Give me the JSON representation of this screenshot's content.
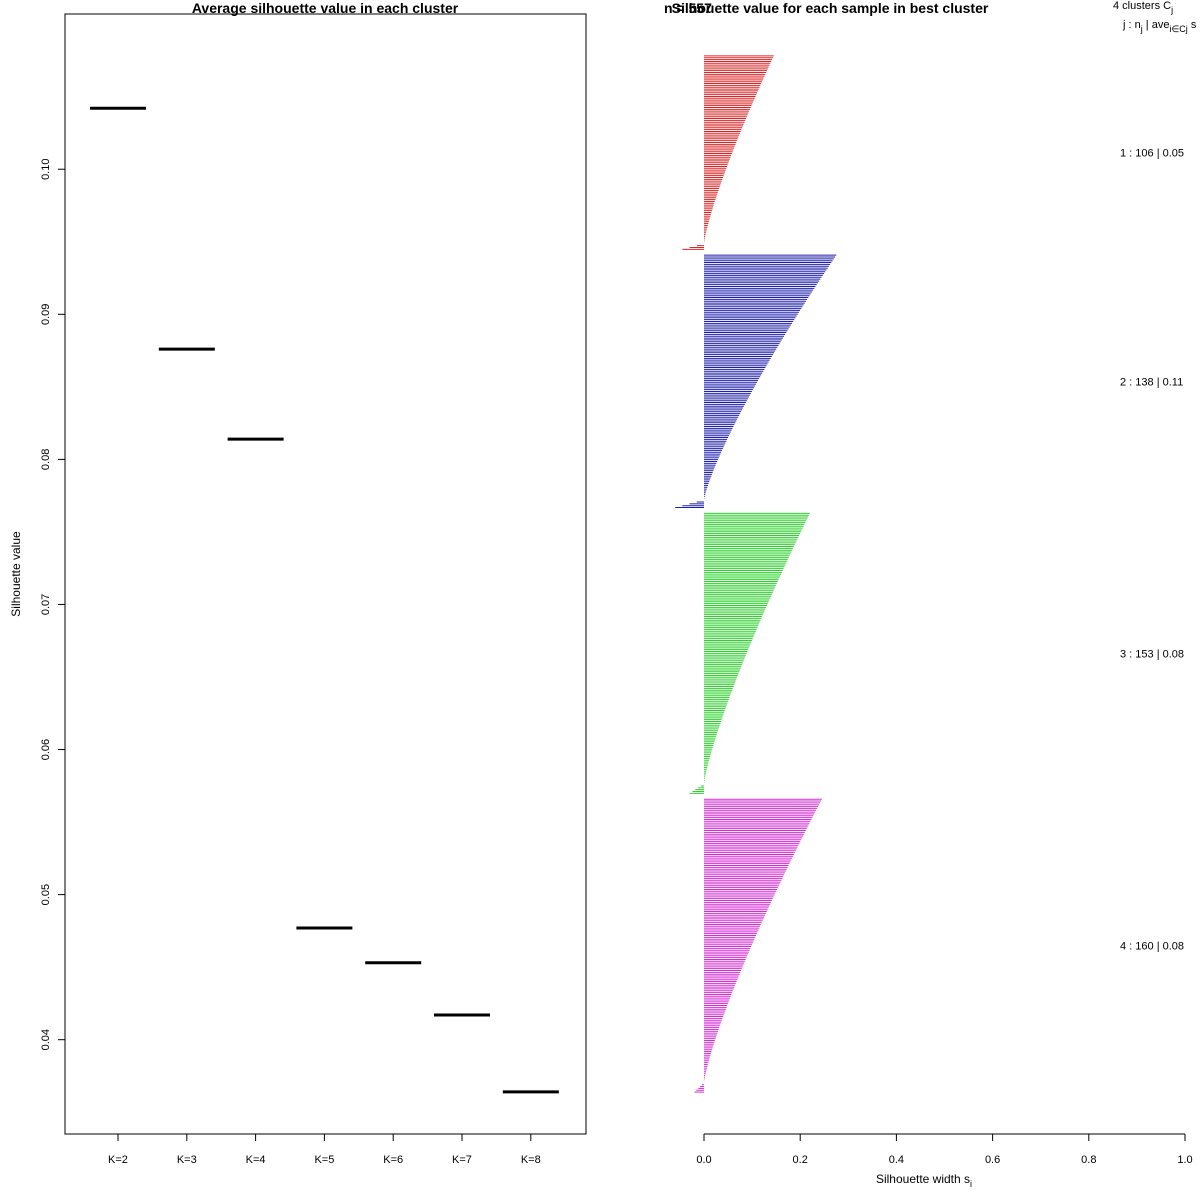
{
  "chart_data": [
    {
      "type": "line",
      "title": "Average silhouette value in each cluster",
      "xlabel": "",
      "ylabel": "Silhouette value",
      "categories": [
        "K=2",
        "K=3",
        "K=4",
        "K=5",
        "K=6",
        "K=7",
        "K=8"
      ],
      "values": [
        0.1042,
        0.0876,
        0.0814,
        0.0477,
        0.0453,
        0.0417,
        0.0364
      ],
      "ylim": [
        0.0335,
        0.1107
      ],
      "yticks": [
        0.04,
        0.05,
        0.06,
        0.07,
        0.08,
        0.09,
        0.1
      ],
      "ytick_labels": [
        "0.04",
        "0.05",
        "0.06",
        "0.07",
        "0.08",
        "0.09",
        "0.10"
      ],
      "grid": false
    },
    {
      "type": "bar",
      "orientation": "horizontal",
      "title": "Silhouette value for each sample in best cluster",
      "overlapped_title_fragment": "n = 557",
      "xlabel": "Silhouette width s",
      "xlabel_subscript": "i",
      "xlim": [
        0,
        1
      ],
      "xticks": [
        0,
        0.2,
        0.4,
        0.6,
        0.8,
        1
      ],
      "xtick_labels": [
        "0.0",
        "0.2",
        "0.4",
        "0.6",
        "0.8",
        "1.0"
      ],
      "legend_header": {
        "line1_prefix": "4  clusters  C",
        "line1_sub": "j",
        "line2_prefix": "j :  n",
        "line2_sub1": "j",
        "line2_mid": " | ave",
        "line2_sub2": "i∈Cj",
        "line2_suffix": "  s"
      },
      "clusters": [
        {
          "id": 1,
          "n": 106,
          "avg": "0.05",
          "label": "1 :  106  |  0.05",
          "color": "#d62728",
          "max": 0.145,
          "min": -0.045
        },
        {
          "id": 2,
          "n": 138,
          "avg": "0.11",
          "label": "2 :  138  |  0.11",
          "color": "#1f1fa8",
          "max": 0.275,
          "min": -0.06
        },
        {
          "id": 3,
          "n": 153,
          "avg": "0.08",
          "label": "3 :  153  |  0.08",
          "color": "#2fcf2f",
          "max": 0.22,
          "min": -0.03
        },
        {
          "id": 4,
          "n": 160,
          "avg": "0.08",
          "label": "4 :  160  |  0.08",
          "color": "#d12fd1",
          "max": 0.245,
          "min": -0.02
        }
      ]
    }
  ]
}
